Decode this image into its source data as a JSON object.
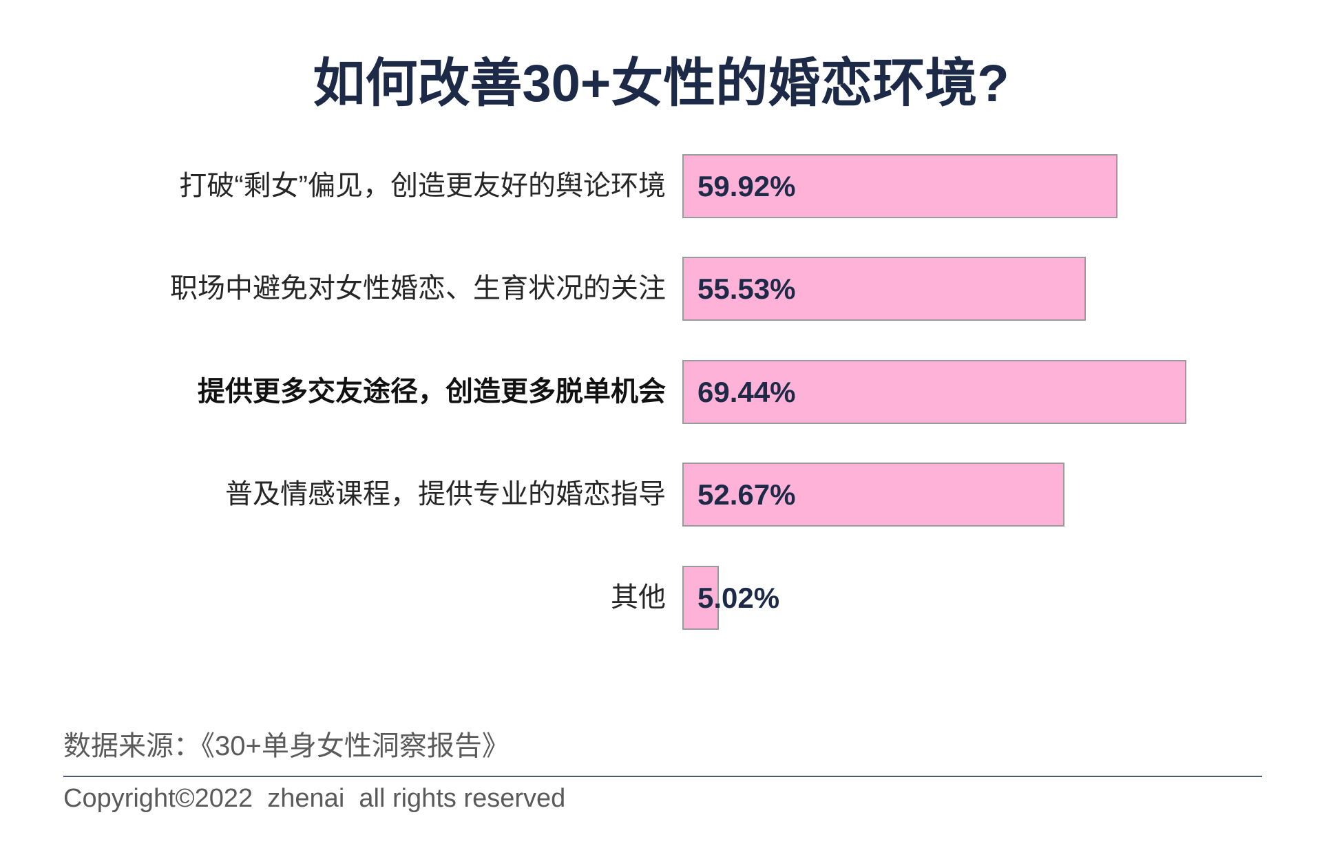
{
  "chart_data": {
    "type": "bar",
    "orientation": "horizontal",
    "title": "如何改善30+女性的婚恋环境?",
    "xlabel": "",
    "ylabel": "",
    "categories": [
      "打破“剩女”偏见，创造更友好的舆论环境",
      "职场中避免对女性婚恋、生育状况的关注",
      "提供更多交友途径，创造更多脱单机会",
      "普及情感课程，提供专业的婚恋指导",
      "其他"
    ],
    "values": [
      59.92,
      55.53,
      69.44,
      52.67,
      5.02
    ],
    "value_labels": [
      "59.92%",
      "55.53%",
      "69.44%",
      "52.67%",
      "5.02%"
    ],
    "emphasized_index": 2,
    "grid": false,
    "legend": "none"
  },
  "footer": {
    "source": "数据来源：《30+单身女性洞察报告》",
    "copyright": "Copyright©2022  zhenai  all rights reserved"
  },
  "colors": {
    "title": "#1c2a48",
    "bar_fill": "#ffb2d8",
    "bar_border": "#9b9b9b",
    "value_label": "#1c2a48",
    "category_label": "#262626",
    "footer_text": "#5a5a5a",
    "divider": "#4c5878"
  }
}
